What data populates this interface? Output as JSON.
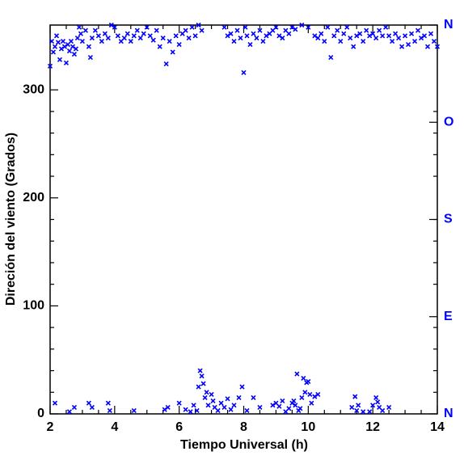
{
  "chart_data": {
    "type": "scatter",
    "x_label": "Tiempo Universal (h)",
    "y_label": "Direción del viento (Grados)",
    "color": "#0000ff",
    "xlim": [
      2,
      14
    ],
    "xticks": [
      2,
      4,
      6,
      8,
      10,
      12,
      14
    ],
    "ylim": [
      0,
      360
    ],
    "yticks": [
      0,
      100,
      200,
      300
    ],
    "y2lim": [
      0,
      360
    ],
    "y2ticks": [
      {
        "value": 0,
        "label": "N"
      },
      {
        "value": 90,
        "label": "E"
      },
      {
        "value": 180,
        "label": "S"
      },
      {
        "value": 270,
        "label": "O"
      },
      {
        "value": 360,
        "label": "N"
      }
    ],
    "x": [
      2.0,
      2.05,
      2.1,
      2.15,
      2.2,
      2.25,
      2.3,
      2.35,
      2.4,
      2.45,
      2.5,
      2.55,
      2.6,
      2.65,
      2.7,
      2.75,
      2.8,
      2.85,
      2.9,
      2.95,
      3.0,
      3.1,
      3.2,
      3.25,
      3.3,
      3.4,
      3.5,
      3.6,
      3.7,
      3.8,
      3.9,
      4.0,
      4.1,
      4.2,
      4.3,
      4.4,
      4.5,
      4.6,
      4.7,
      4.8,
      4.9,
      5.0,
      5.1,
      5.2,
      5.3,
      5.4,
      5.5,
      5.6,
      5.7,
      5.8,
      5.9,
      6.0,
      6.1,
      6.2,
      6.3,
      6.4,
      6.5,
      6.6,
      6.7,
      7.4,
      7.5,
      7.6,
      7.7,
      7.8,
      7.9,
      8.0,
      8.05,
      8.1,
      8.2,
      8.3,
      8.4,
      8.5,
      8.6,
      8.7,
      8.8,
      8.9,
      9.0,
      9.1,
      9.2,
      9.3,
      9.4,
      9.5,
      9.6,
      9.8,
      10.0,
      10.2,
      10.3,
      10.4,
      10.5,
      10.6,
      10.7,
      10.8,
      10.9,
      11.0,
      11.1,
      11.2,
      11.3,
      11.4,
      11.5,
      11.6,
      11.7,
      11.8,
      11.9,
      12.0,
      12.1,
      12.2,
      12.3,
      12.4,
      12.5,
      12.6,
      12.7,
      12.8,
      12.9,
      13.0,
      13.1,
      13.2,
      13.3,
      13.4,
      13.5,
      13.6,
      13.7,
      13.8,
      13.9,
      14.0,
      2.15,
      2.6,
      2.75,
      3.2,
      3.3,
      3.8,
      3.85,
      4.6,
      5.55,
      5.65,
      6.0,
      6.2,
      6.35,
      6.45,
      6.55,
      6.6,
      6.65,
      6.7,
      6.75,
      6.8,
      6.85,
      6.9,
      7.0,
      7.05,
      7.1,
      7.2,
      7.3,
      7.4,
      7.5,
      7.6,
      7.7,
      7.85,
      7.95,
      8.1,
      8.3,
      8.5,
      8.9,
      9.0,
      9.1,
      9.2,
      9.3,
      9.4,
      9.5,
      9.55,
      9.6,
      9.65,
      9.7,
      9.75,
      9.8,
      9.85,
      9.9,
      9.95,
      10.0,
      10.05,
      10.1,
      10.2,
      10.3,
      11.35,
      11.45,
      11.5,
      11.55,
      11.7,
      11.9,
      12.0,
      12.1,
      12.15,
      12.2,
      12.3,
      12.5
    ],
    "values": [
      322,
      345,
      335,
      340,
      350,
      344,
      328,
      338,
      345,
      340,
      325,
      342,
      336,
      345,
      340,
      333,
      338,
      348,
      358,
      352,
      345,
      355,
      340,
      330,
      348,
      355,
      350,
      345,
      352,
      348,
      360,
      358,
      350,
      345,
      348,
      352,
      345,
      350,
      355,
      348,
      352,
      358,
      350,
      346,
      355,
      340,
      348,
      324,
      345,
      335,
      350,
      342,
      352,
      355,
      348,
      358,
      350,
      360,
      355,
      358,
      350,
      352,
      345,
      355,
      348,
      316,
      358,
      350,
      342,
      352,
      348,
      355,
      345,
      350,
      352,
      355,
      358,
      350,
      348,
      355,
      352,
      358,
      356,
      360,
      358,
      350,
      348,
      352,
      345,
      358,
      330,
      350,
      355,
      345,
      352,
      358,
      348,
      340,
      350,
      352,
      345,
      355,
      350,
      352,
      348,
      355,
      350,
      358,
      350,
      345,
      352,
      348,
      340,
      350,
      342,
      352,
      345,
      355,
      348,
      350,
      340,
      352,
      345,
      340,
      10,
      2,
      6,
      10,
      6,
      10,
      3,
      3,
      4,
      6,
      10,
      4,
      2,
      8,
      3,
      25,
      40,
      35,
      28,
      15,
      20,
      8,
      18,
      12,
      6,
      3,
      10,
      6,
      14,
      4,
      8,
      15,
      25,
      3,
      15,
      6,
      8,
      10,
      7,
      12,
      2,
      5,
      10,
      12,
      8,
      37,
      3,
      5,
      15,
      33,
      20,
      29,
      30,
      18,
      10,
      16,
      18,
      6,
      16,
      3,
      8,
      2,
      2,
      8,
      15,
      11,
      6,
      3,
      6
    ]
  }
}
